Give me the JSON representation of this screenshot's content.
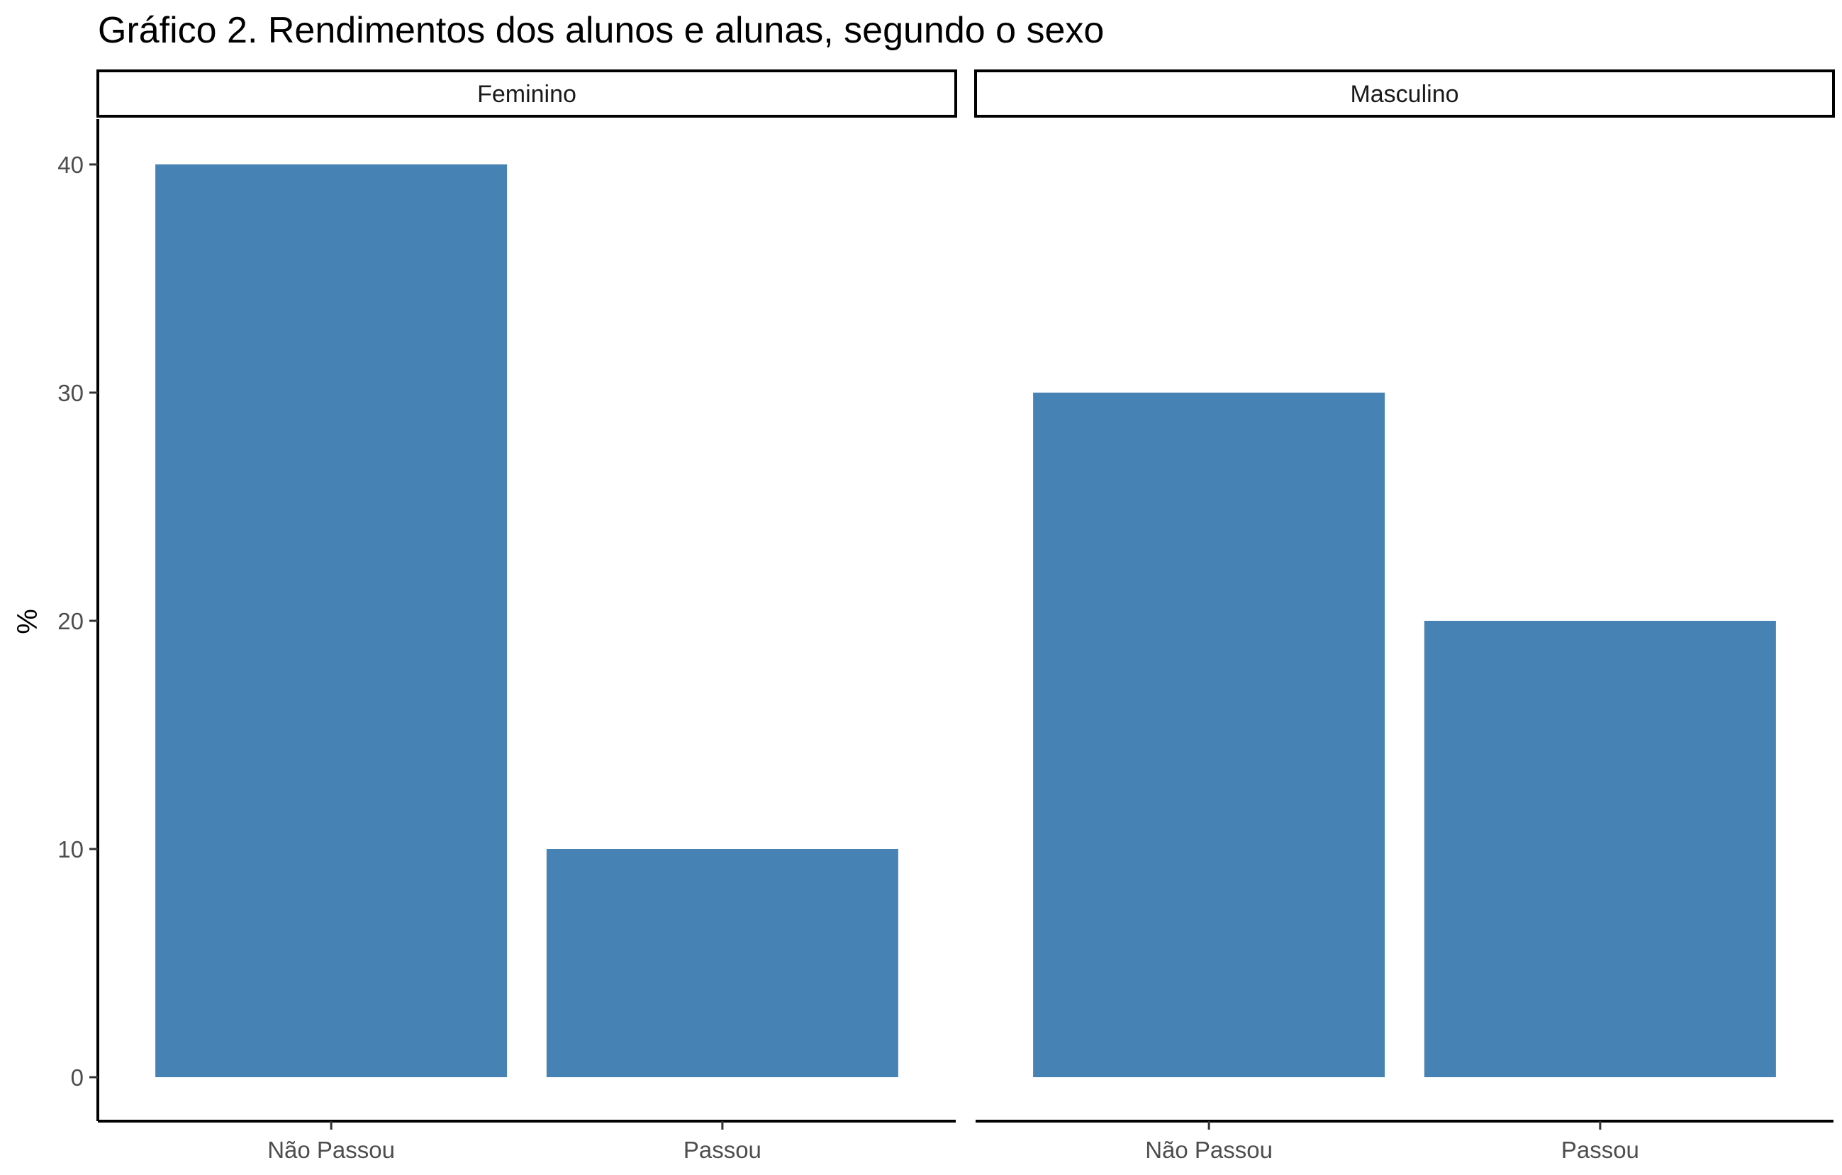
{
  "chart_data": {
    "type": "bar",
    "title": "Gráfico 2. Rendimentos dos alunos e alunas, segundo o sexo",
    "xlabel": "",
    "ylabel": "%",
    "ylim": [
      0,
      42
    ],
    "yticks": [
      "0",
      "10",
      "20",
      "30",
      "40"
    ],
    "categories": [
      "Não Passou",
      "Passou"
    ],
    "facets": [
      {
        "name": "Feminino",
        "values": [
          40,
          10
        ]
      },
      {
        "name": "Masculino",
        "values": [
          30,
          20
        ]
      }
    ],
    "bar_color": "#4682B4",
    "grid": false,
    "legend": "none"
  }
}
